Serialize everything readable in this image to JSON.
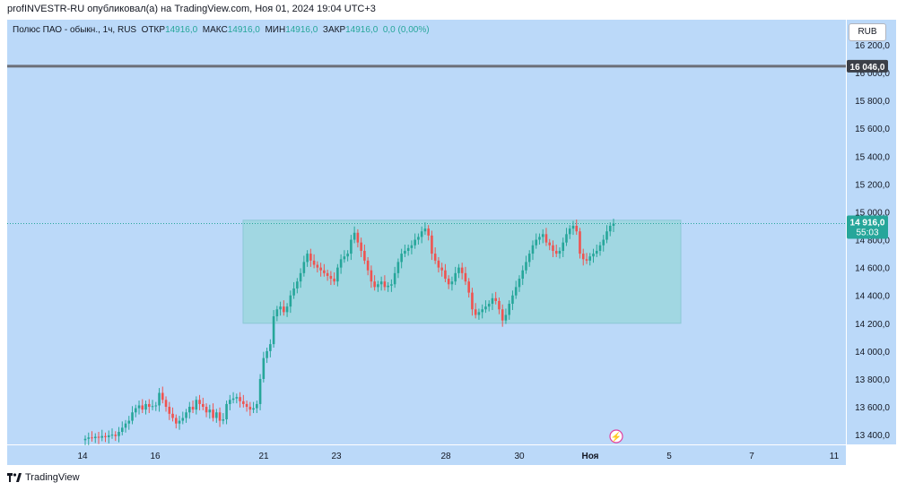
{
  "header": {
    "published": "profINVESTR-RU опубликовал(а) на TradingView.com, Ноя 01, 2024 19:04 UTC+3"
  },
  "legend": {
    "symbol": "Полюс ПАО - обыкн., 1ч, RUS",
    "open_label": "ОТКР",
    "open_value": "14916,0",
    "high_label": "МАКС",
    "high_value": "14916,0",
    "low_label": "МИН",
    "low_value": "14916,0",
    "close_label": "ЗАКР",
    "close_value": "14916,0",
    "change": "0,0 (0,00%)"
  },
  "currency_button": "RUB",
  "footer": {
    "brand": "TradingView"
  },
  "colors": {
    "background": "#bbd9f9",
    "up": "#26a69a",
    "down": "#ef5350",
    "range_box": "#9fd7e0",
    "level_line": "#6b6f78",
    "price_badge": "#26a69a"
  },
  "chart_data": {
    "type": "candlestick",
    "x_tick_labels": [
      "14",
      "16",
      "21",
      "23",
      "28",
      "30",
      "Ноя",
      "5",
      "7",
      "11"
    ],
    "y_tick_labels": [
      "16 200,0",
      "16 000,0",
      "15 800,0",
      "15 600,0",
      "15 400,0",
      "15 200,0",
      "15 000,0",
      "14 800,0",
      "14 600,0",
      "14 400,0",
      "14 200,0",
      "14 000,0",
      "13 800,0",
      "13 600,0",
      "13 400,0"
    ],
    "y_ticks": [
      16200,
      16000,
      15800,
      15600,
      15400,
      15200,
      15000,
      14800,
      14600,
      14400,
      14200,
      14000,
      13800,
      13600,
      13400
    ],
    "ylim": [
      13330,
      16380
    ],
    "horizontal_level": {
      "value": 16046,
      "label": "16 046,0"
    },
    "last_price": {
      "value": 14916,
      "label": "14 916,0",
      "countdown": "55:03"
    },
    "range_box": {
      "top": 14940,
      "bottom": 14200
    },
    "closes": [
      13370,
      13380,
      13375,
      13385,
      13378,
      13390,
      13382,
      13395,
      13400,
      13390,
      13420,
      13450,
      13480,
      13500,
      13560,
      13590,
      13610,
      13580,
      13620,
      13600,
      13605,
      13610,
      13700,
      13650,
      13600,
      13550,
      13520,
      13480,
      13500,
      13520,
      13560,
      13600,
      13580,
      13650,
      13620,
      13600,
      13560,
      13580,
      13520,
      13560,
      13500,
      13510,
      13620,
      13650,
      13660,
      13670,
      13640,
      13620,
      13600,
      13580,
      13590,
      13620,
      13800,
      13950,
      14000,
      14050,
      14250,
      14300,
      14320,
      14280,
      14320,
      14400,
      14450,
      14500,
      14560,
      14640,
      14700,
      14650,
      14620,
      14600,
      14580,
      14560,
      14540,
      14520,
      14500,
      14600,
      14660,
      14680,
      14700,
      14800,
      14850,
      14780,
      14720,
      14650,
      14580,
      14500,
      14460,
      14480,
      14500,
      14460,
      14470,
      14480,
      14560,
      14640,
      14700,
      14720,
      14740,
      14760,
      14800,
      14820,
      14860,
      14880,
      14830,
      14700,
      14650,
      14600,
      14580,
      14520,
      14480,
      14500,
      14560,
      14600,
      14560,
      14500,
      14420,
      14300,
      14260,
      14280,
      14300,
      14320,
      14340,
      14380,
      14360,
      14300,
      14220,
      14260,
      14340,
      14400,
      14460,
      14520,
      14580,
      14640,
      14700,
      14760,
      14800,
      14820,
      14840,
      14780,
      14760,
      14720,
      14700,
      14720,
      14780,
      14840,
      14880,
      14900,
      14860,
      14700,
      14660,
      14650,
      14680,
      14700,
      14720,
      14760,
      14800,
      14860,
      14900,
      14916
    ]
  }
}
